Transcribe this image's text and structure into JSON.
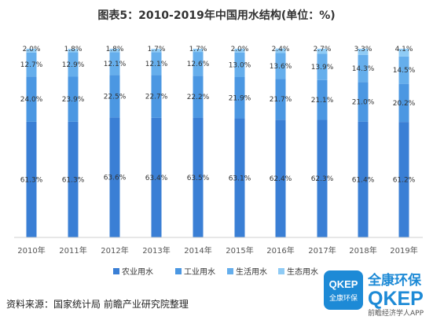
{
  "chart_data": {
    "type": "bar",
    "stacked": true,
    "percent_stacked": true,
    "title": "图表5：2010-2019年中国用水结构(单位：%)",
    "categories": [
      "2010年",
      "2011年",
      "2012年",
      "2013年",
      "2014年",
      "2015年",
      "2016年",
      "2017年",
      "2018年",
      "2019年"
    ],
    "series": [
      {
        "name": "农业用水",
        "color": "#3a7fd5",
        "values": [
          61.3,
          61.3,
          63.6,
          63.4,
          63.5,
          63.1,
          62.4,
          62.3,
          61.4,
          61.2
        ],
        "labels": [
          "61.3%",
          "61.3%",
          "63.6%",
          "63.4%",
          "63.5%",
          "63.1%",
          "62.4%",
          "62.3%",
          "61.4%",
          "61.2%"
        ]
      },
      {
        "name": "工业用水",
        "color": "#4b97e2",
        "values": [
          24.0,
          23.9,
          22.5,
          22.7,
          22.2,
          21.9,
          21.7,
          21.1,
          21.0,
          20.2
        ],
        "labels": [
          "24.0%",
          "23.9%",
          "22.5%",
          "22.7%",
          "22.2%",
          "21.9%",
          "21.7%",
          "21.1%",
          "21.0%",
          "20.2%"
        ]
      },
      {
        "name": "生活用水",
        "color": "#65aeec",
        "values": [
          12.7,
          12.9,
          12.1,
          12.1,
          12.6,
          13.0,
          13.6,
          13.9,
          14.3,
          14.5
        ],
        "labels": [
          "12.7%",
          "12.9%",
          "12.1%",
          "12.1%",
          "12.6%",
          "13.0%",
          "13.6%",
          "13.9%",
          "14.3%",
          "14.5%"
        ]
      },
      {
        "name": "生态用水",
        "color": "#8fcbf5",
        "values": [
          2.0,
          1.8,
          1.8,
          1.7,
          1.7,
          2.0,
          2.4,
          2.7,
          3.3,
          4.1
        ],
        "labels": [
          "2.0%",
          "1.8%",
          "1.8%",
          "1.7%",
          "1.7%",
          "2.0%",
          "2.4%",
          "2.7%",
          "3.3%",
          "4.1%"
        ]
      }
    ],
    "ylim": [
      0,
      100
    ],
    "grid": false,
    "legend_position": "bottom"
  },
  "source_text": "资料来源：国家统计局 前瞻产业研究院整理",
  "logo": {
    "brand_cn": "全康环保",
    "brand_en": "QKEP",
    "badge_text": "QKEP",
    "badge_sub": "全康环保",
    "tagline": "前瞻经济学人APP",
    "color": "#1d8ad6"
  }
}
